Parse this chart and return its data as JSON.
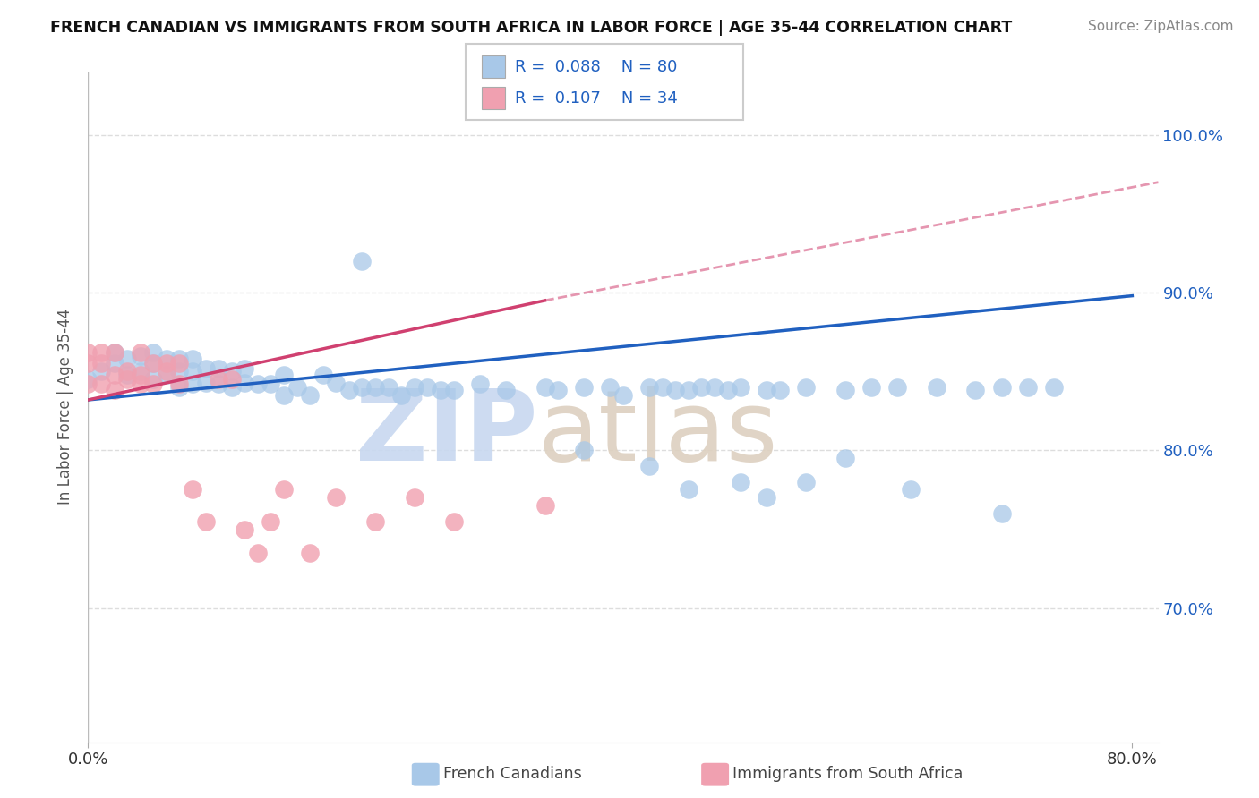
{
  "title": "FRENCH CANADIAN VS IMMIGRANTS FROM SOUTH AFRICA IN LABOR FORCE | AGE 35-44 CORRELATION CHART",
  "source": "Source: ZipAtlas.com",
  "ylabel": "In Labor Force | Age 35-44",
  "legend_r_blue": "0.088",
  "legend_n_blue": "80",
  "legend_r_pink": "0.107",
  "legend_n_pink": "34",
  "blue_color": "#a8c8e8",
  "pink_color": "#f0a0b0",
  "blue_line_color": "#2060c0",
  "pink_line_color": "#d04070",
  "xlim": [
    0.0,
    0.82
  ],
  "ylim": [
    0.615,
    1.04
  ],
  "yticks": [
    0.7,
    0.8,
    0.9,
    1.0
  ],
  "ytick_labels": [
    "70.0%",
    "80.0%",
    "90.0%",
    "100.0%"
  ],
  "xtick_labels": [
    "0.0%",
    "80.0%"
  ],
  "xtick_positions": [
    0.0,
    0.8
  ],
  "grid_color": "#dddddd",
  "watermark_zip_color": "#c8d8f0",
  "watermark_atlas_color": "#ddd0c0",
  "blue_x": [
    0.0,
    0.01,
    0.02,
    0.02,
    0.03,
    0.03,
    0.04,
    0.04,
    0.05,
    0.05,
    0.05,
    0.06,
    0.06,
    0.07,
    0.07,
    0.07,
    0.08,
    0.08,
    0.08,
    0.09,
    0.09,
    0.1,
    0.1,
    0.11,
    0.11,
    0.12,
    0.12,
    0.13,
    0.14,
    0.15,
    0.15,
    0.16,
    0.17,
    0.18,
    0.19,
    0.2,
    0.21,
    0.22,
    0.23,
    0.24,
    0.25,
    0.26,
    0.27,
    0.28,
    0.3,
    0.32,
    0.35,
    0.36,
    0.38,
    0.4,
    0.41,
    0.43,
    0.44,
    0.45,
    0.46,
    0.47,
    0.48,
    0.49,
    0.5,
    0.52,
    0.53,
    0.55,
    0.58,
    0.6,
    0.62,
    0.65,
    0.68,
    0.7,
    0.72,
    0.74,
    0.21,
    0.38,
    0.43,
    0.46,
    0.5,
    0.52,
    0.55,
    0.58,
    0.63,
    0.7
  ],
  "blue_y": [
    0.845,
    0.85,
    0.855,
    0.862,
    0.848,
    0.858,
    0.85,
    0.86,
    0.845,
    0.855,
    0.862,
    0.848,
    0.858,
    0.84,
    0.85,
    0.858,
    0.842,
    0.85,
    0.858,
    0.843,
    0.852,
    0.842,
    0.852,
    0.84,
    0.85,
    0.843,
    0.852,
    0.842,
    0.842,
    0.835,
    0.848,
    0.84,
    0.835,
    0.848,
    0.843,
    0.838,
    0.84,
    0.84,
    0.84,
    0.835,
    0.84,
    0.84,
    0.838,
    0.838,
    0.842,
    0.838,
    0.84,
    0.838,
    0.84,
    0.84,
    0.835,
    0.84,
    0.84,
    0.838,
    0.838,
    0.84,
    0.84,
    0.838,
    0.84,
    0.838,
    0.838,
    0.84,
    0.838,
    0.84,
    0.84,
    0.84,
    0.838,
    0.84,
    0.84,
    0.84,
    0.92,
    0.8,
    0.79,
    0.775,
    0.78,
    0.77,
    0.78,
    0.795,
    0.775,
    0.76
  ],
  "pink_x": [
    0.0,
    0.0,
    0.0,
    0.01,
    0.01,
    0.01,
    0.02,
    0.02,
    0.02,
    0.03,
    0.03,
    0.04,
    0.04,
    0.04,
    0.05,
    0.05,
    0.06,
    0.06,
    0.07,
    0.07,
    0.08,
    0.09,
    0.1,
    0.11,
    0.12,
    0.13,
    0.14,
    0.15,
    0.17,
    0.19,
    0.22,
    0.25,
    0.28,
    0.35
  ],
  "pink_y": [
    0.842,
    0.855,
    0.862,
    0.842,
    0.855,
    0.862,
    0.838,
    0.848,
    0.862,
    0.85,
    0.845,
    0.842,
    0.848,
    0.862,
    0.842,
    0.855,
    0.85,
    0.855,
    0.842,
    0.855,
    0.775,
    0.755,
    0.845,
    0.845,
    0.75,
    0.735,
    0.755,
    0.775,
    0.735,
    0.77,
    0.755,
    0.77,
    0.755,
    0.765
  ]
}
